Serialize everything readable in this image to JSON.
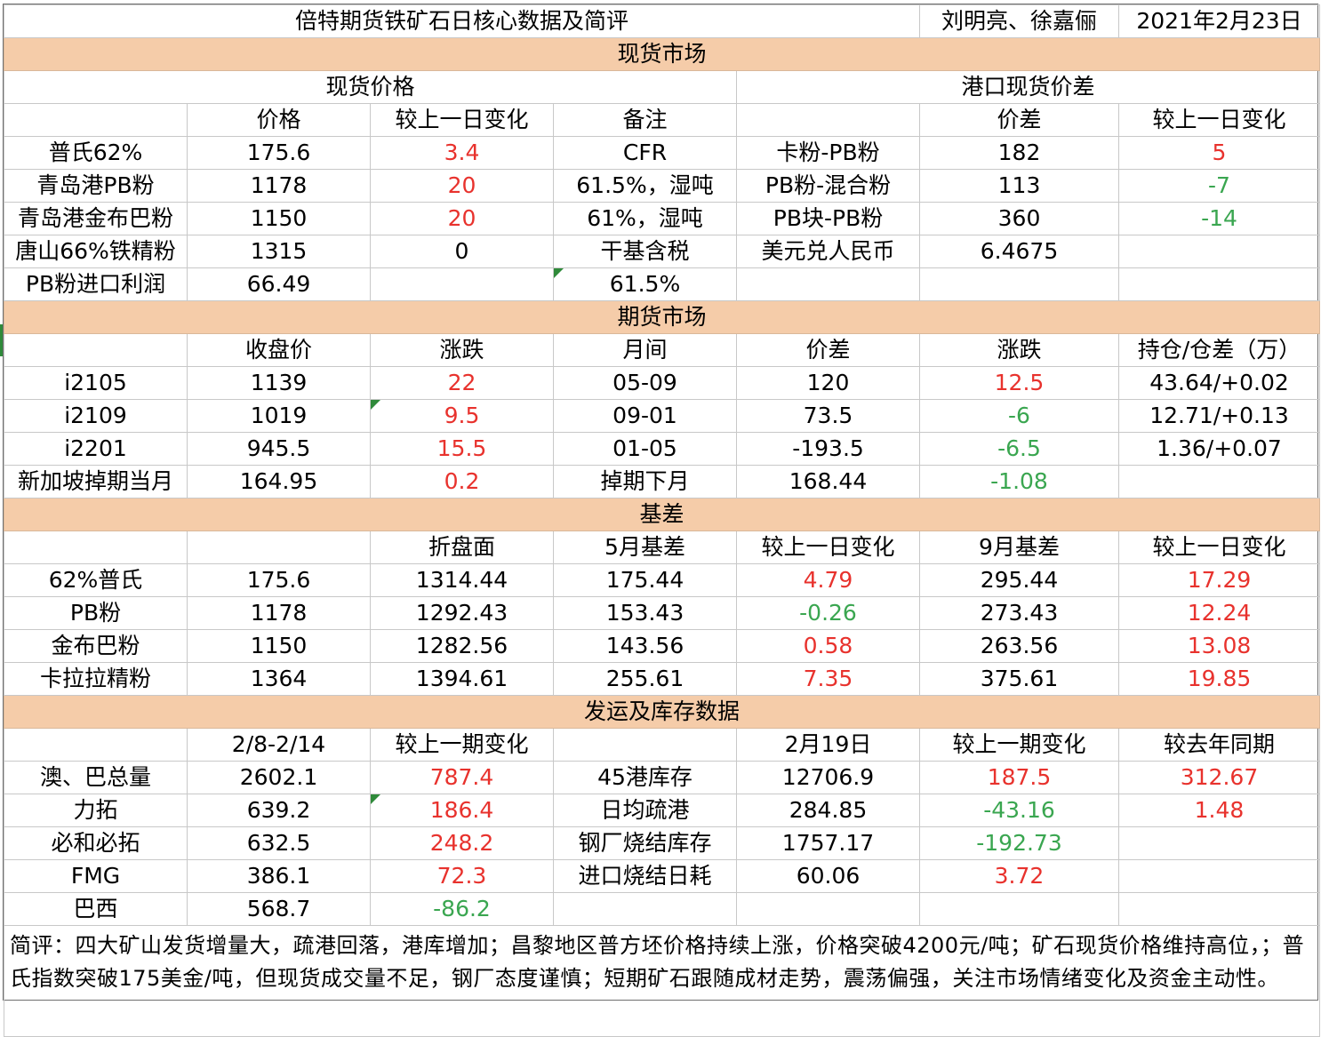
{
  "header": {
    "title": "倍特期货铁矿石日核心数据及简评",
    "authors": "刘明亮、徐嘉俪",
    "date": "2021年2月23日"
  },
  "spot": {
    "section_title": "现货市场",
    "price_title": "现货价格",
    "spread_title": "港口现货价差",
    "columns": [
      "价格",
      "较上一日变化",
      "备注",
      "价差",
      "较上一日变化"
    ],
    "rows": [
      {
        "name": "普氏62%",
        "price": "175.6",
        "change": "3.4",
        "note": "CFR",
        "pair": "卡粉-PB粉",
        "spread": "182",
        "spread_change": "5"
      },
      {
        "name": "青岛港PB粉",
        "price": "1178",
        "change": "20",
        "note": "61.5%，湿吨",
        "pair": "PB粉-混合粉",
        "spread": "113",
        "spread_change": "-7"
      },
      {
        "name": "青岛港金布巴粉",
        "price": "1150",
        "change": "20",
        "note": "61%，湿吨",
        "pair": "PB块-PB粉",
        "spread": "360",
        "spread_change": "-14"
      },
      {
        "name": "唐山66%铁精粉",
        "price": "1315",
        "change": "0",
        "note": "干基含税",
        "pair": "美元兑人民币",
        "spread": "6.4675",
        "spread_change": ""
      },
      {
        "name": "PB粉进口利润",
        "price": "66.49",
        "change": "",
        "note": "61.5%",
        "pair": "",
        "spread": "",
        "spread_change": ""
      }
    ]
  },
  "futures": {
    "section_title": "期货市场",
    "columns": [
      "收盘价",
      "涨跌",
      "月间",
      "价差",
      "涨跌",
      "持仓/仓差（万）"
    ],
    "rows": [
      {
        "name": "i2105",
        "close": "1139",
        "chg": "22",
        "month": "05-09",
        "spread": "120",
        "spread_chg": "12.5",
        "oi": "43.64/+0.02"
      },
      {
        "name": "i2109",
        "close": "1019",
        "chg": "9.5",
        "month": "09-01",
        "spread": "73.5",
        "spread_chg": "-6",
        "oi": "12.71/+0.13"
      },
      {
        "name": "i2201",
        "close": "945.5",
        "chg": "15.5",
        "month": "01-05",
        "spread": "-193.5",
        "spread_chg": "-6.5",
        "oi": "1.36/+0.07"
      },
      {
        "name": "新加坡掉期当月",
        "close": "164.95",
        "chg": "0.2",
        "month": "掉期下月",
        "spread": "168.44",
        "spread_chg": "-1.08",
        "oi": ""
      }
    ]
  },
  "basis": {
    "section_title": "基差",
    "columns": [
      "",
      "折盘面",
      "5月基差",
      "较上一日变化",
      "9月基差",
      "较上一日变化"
    ],
    "rows": [
      {
        "name": "62%普氏",
        "price": "175.6",
        "converted": "1314.44",
        "b5": "175.44",
        "b5_chg": "4.79",
        "b9": "295.44",
        "b9_chg": "17.29"
      },
      {
        "name": "PB粉",
        "price": "1178",
        "converted": "1292.43",
        "b5": "153.43",
        "b5_chg": "-0.26",
        "b9": "273.43",
        "b9_chg": "12.24"
      },
      {
        "name": "金布巴粉",
        "price": "1150",
        "converted": "1282.56",
        "b5": "143.56",
        "b5_chg": "0.58",
        "b9": "263.56",
        "b9_chg": "13.08"
      },
      {
        "name": "卡拉拉精粉",
        "price": "1364",
        "converted": "1394.61",
        "b5": "255.61",
        "b5_chg": "7.35",
        "b9": "375.61",
        "b9_chg": "19.85"
      }
    ]
  },
  "shipping": {
    "section_title": "发运及库存数据",
    "columns": [
      "2/8-2/14",
      "较上一期变化",
      "",
      "2月19日",
      "较上一期变化",
      "较去年同期"
    ],
    "rows": [
      {
        "name": "澳、巴总量",
        "val": "2602.1",
        "chg": "787.4",
        "item": "45港库存",
        "val2": "12706.9",
        "chg2": "187.5",
        "yoy": "312.67"
      },
      {
        "name": "力拓",
        "val": "639.2",
        "chg": "186.4",
        "item": "日均疏港",
        "val2": "284.85",
        "chg2": "-43.16",
        "yoy": "1.48"
      },
      {
        "name": "必和必拓",
        "val": "632.5",
        "chg": "248.2",
        "item": "钢厂烧结库存",
        "val2": "1757.17",
        "chg2": "-192.73",
        "yoy": ""
      },
      {
        "name": "FMG",
        "val": "386.1",
        "chg": "72.3",
        "item": "进口烧结日耗",
        "val2": "60.06",
        "chg2": "3.72",
        "yoy": ""
      },
      {
        "name": "巴西",
        "val": "568.7",
        "chg": "-86.2",
        "item": "",
        "val2": "",
        "chg2": "",
        "yoy": ""
      }
    ]
  },
  "comment": "简评：四大矿山发货增量大，疏港回落，港库增加；昌黎地区普方坯价格持续上涨，价格突破4200元/吨；矿石现货价格维持高位，；普氏指数突破175美金/吨，但现货成交量不足，钢厂态度谨慎；短期矿石跟随成材走势，震荡偏强，关注市场情绪变化及资金主动性。",
  "colors": {
    "section_bg": "#f5cca9",
    "up": "#e8322d",
    "down": "#3aa650",
    "grid": "#c8c8c8"
  }
}
